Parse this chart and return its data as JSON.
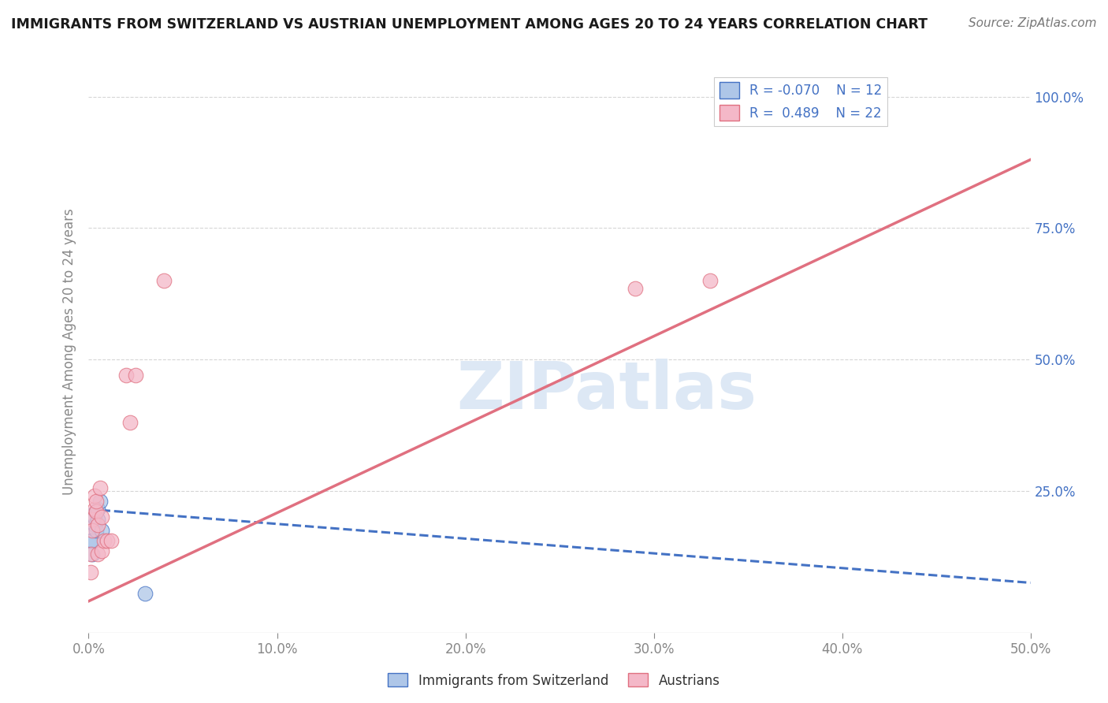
{
  "title": "IMMIGRANTS FROM SWITZERLAND VS AUSTRIAN UNEMPLOYMENT AMONG AGES 20 TO 24 YEARS CORRELATION CHART",
  "source": "Source: ZipAtlas.com",
  "ylabel": "Unemployment Among Ages 20 to 24 years",
  "xlim": [
    0.0,
    0.5
  ],
  "ylim": [
    -0.02,
    1.05
  ],
  "xtick_values": [
    0.0,
    0.1,
    0.2,
    0.3,
    0.4,
    0.5
  ],
  "xtick_labels": [
    "0.0%",
    "10.0%",
    "20.0%",
    "30.0%",
    "40.0%",
    "50.0%"
  ],
  "ytick_values": [
    0.25,
    0.5,
    0.75,
    1.0
  ],
  "ytick_labels": [
    "25.0%",
    "50.0%",
    "75.0%",
    "100.0%"
  ],
  "blue_scatter_x": [
    0.001,
    0.002,
    0.002,
    0.003,
    0.003,
    0.004,
    0.004,
    0.005,
    0.005,
    0.006,
    0.007,
    0.03
  ],
  "blue_scatter_y": [
    0.155,
    0.13,
    0.155,
    0.185,
    0.2,
    0.21,
    0.175,
    0.215,
    0.195,
    0.23,
    0.175,
    0.055
  ],
  "pink_scatter_x": [
    0.001,
    0.001,
    0.002,
    0.002,
    0.003,
    0.003,
    0.004,
    0.004,
    0.005,
    0.005,
    0.006,
    0.007,
    0.007,
    0.008,
    0.01,
    0.012,
    0.02,
    0.022,
    0.025,
    0.04,
    0.29,
    0.33
  ],
  "pink_scatter_y": [
    0.095,
    0.13,
    0.195,
    0.175,
    0.215,
    0.24,
    0.21,
    0.23,
    0.185,
    0.13,
    0.255,
    0.2,
    0.135,
    0.155,
    0.155,
    0.155,
    0.47,
    0.38,
    0.47,
    0.65,
    0.635,
    0.65
  ],
  "blue_line_x0": 0.0,
  "blue_line_x1": 0.5,
  "blue_line_y0": 0.215,
  "blue_line_y1": 0.075,
  "pink_line_x0": 0.0,
  "pink_line_x1": 0.5,
  "pink_line_y0": 0.04,
  "pink_line_y1": 0.88,
  "blue_color": "#aec6e8",
  "blue_edge_color": "#4472c4",
  "pink_color": "#f4b8c8",
  "pink_edge_color": "#e07080",
  "blue_line_color": "#4472c4",
  "pink_line_color": "#e07080",
  "legend_r_blue": "R = -0.070",
  "legend_n_blue": "N = 12",
  "legend_r_pink": "R =  0.489",
  "legend_n_pink": "N = 22",
  "legend_label_blue": "Immigrants from Switzerland",
  "legend_label_pink": "Austrians",
  "title_color": "#1a1a1a",
  "source_color": "#777777",
  "axis_label_color": "#888888",
  "tick_color": "#888888",
  "right_tick_color": "#4472c4",
  "grid_color": "#cccccc",
  "watermark_color": "#dde8f5",
  "background_color": "#ffffff"
}
